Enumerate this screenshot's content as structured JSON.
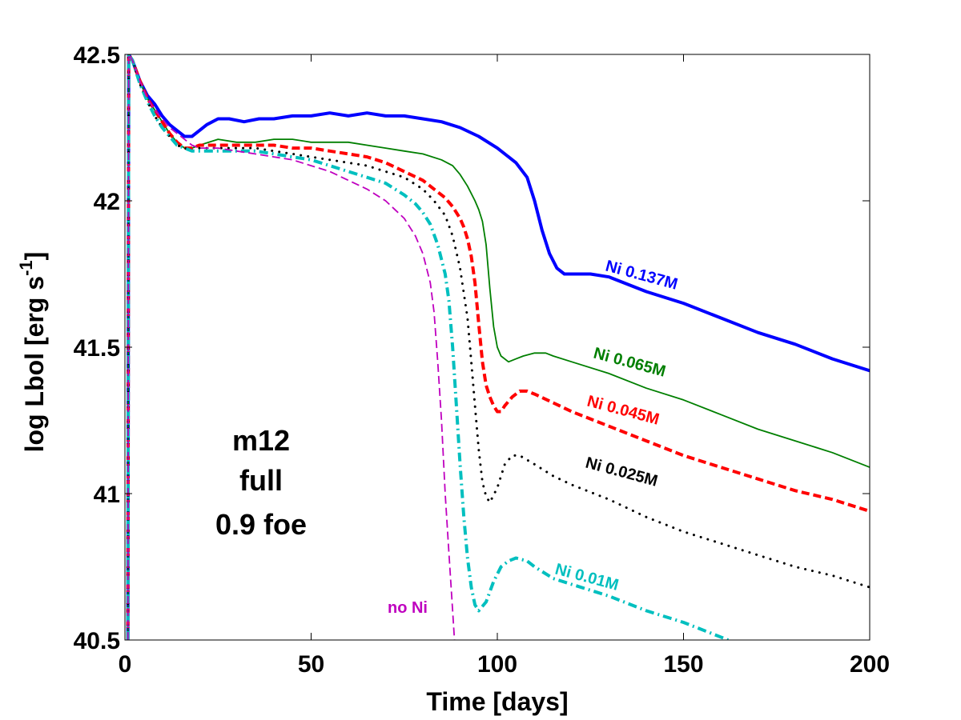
{
  "chart_data": {
    "type": "line",
    "xlabel": "Time [days]",
    "ylabel_main": "log Lbol [erg s",
    "ylabel_sup": "-1",
    "ylabel_close": "]",
    "xlim": [
      0,
      200
    ],
    "ylim": [
      40.5,
      42.5
    ],
    "xticks": [
      0,
      50,
      100,
      150,
      200
    ],
    "yticks": [
      40.5,
      41,
      41.5,
      42,
      42.5
    ],
    "xtick_labels": [
      "0",
      "50",
      "100",
      "150",
      "200"
    ],
    "ytick_labels": [
      "40.5",
      "41",
      "41.5",
      "42",
      "42.5"
    ],
    "annotation": [
      "m12",
      "full",
      "0.9 foe"
    ],
    "series": [
      {
        "name": "Ni 0.137M",
        "label": "Ni 0.137M",
        "color": "#0000ff",
        "style": "solid",
        "width": 4,
        "x": [
          0.8,
          1,
          2,
          4,
          6,
          8,
          10,
          12,
          14,
          16,
          18,
          20,
          22,
          25,
          28,
          32,
          36,
          40,
          45,
          50,
          55,
          60,
          65,
          70,
          75,
          80,
          85,
          90,
          95,
          100,
          105,
          108,
          110,
          112,
          114,
          116,
          118,
          120,
          125,
          130,
          140,
          150,
          160,
          170,
          180,
          190,
          200
        ],
        "y": [
          40.5,
          42.5,
          42.48,
          42.41,
          42.36,
          42.33,
          42.29,
          42.26,
          42.24,
          42.22,
          42.22,
          42.24,
          42.26,
          42.28,
          42.28,
          42.27,
          42.28,
          42.28,
          42.29,
          42.29,
          42.3,
          42.29,
          42.3,
          42.29,
          42.29,
          42.28,
          42.27,
          42.25,
          42.22,
          42.18,
          42.13,
          42.08,
          42.0,
          41.9,
          41.82,
          41.77,
          41.75,
          41.75,
          41.75,
          41.74,
          41.69,
          41.65,
          41.6,
          41.55,
          41.51,
          41.46,
          41.42
        ]
      },
      {
        "name": "Ni 0.065M",
        "label": "Ni 0.065M",
        "color": "#007f00",
        "style": "solid",
        "width": 1.8,
        "x": [
          0.8,
          1,
          2,
          4,
          6,
          8,
          10,
          12,
          14,
          16,
          18,
          20,
          25,
          30,
          35,
          40,
          45,
          50,
          55,
          60,
          65,
          70,
          75,
          80,
          85,
          88,
          90,
          92,
          94,
          95,
          96,
          97,
          98,
          99,
          100,
          101,
          103,
          105,
          107,
          110,
          113,
          115,
          120,
          130,
          140,
          150,
          160,
          170,
          180,
          190,
          200
        ],
        "y": [
          40.5,
          42.5,
          42.48,
          42.41,
          42.35,
          42.31,
          42.27,
          42.23,
          42.2,
          42.18,
          42.18,
          42.19,
          42.21,
          42.2,
          42.2,
          42.21,
          42.21,
          42.2,
          42.2,
          42.2,
          42.19,
          42.18,
          42.17,
          42.16,
          42.14,
          42.12,
          42.09,
          42.05,
          42.0,
          41.97,
          41.93,
          41.85,
          41.7,
          41.57,
          41.5,
          41.47,
          41.45,
          41.46,
          41.47,
          41.48,
          41.48,
          41.47,
          41.45,
          41.41,
          41.36,
          41.32,
          41.27,
          41.22,
          41.18,
          41.14,
          41.09
        ]
      },
      {
        "name": "Ni 0.045M",
        "label": "Ni 0.045M",
        "color": "#ff0000",
        "style": "dashed",
        "width": 4,
        "x": [
          0.8,
          1,
          2,
          4,
          6,
          8,
          10,
          12,
          14,
          16,
          18,
          20,
          25,
          30,
          35,
          40,
          45,
          50,
          55,
          60,
          65,
          70,
          75,
          80,
          83,
          86,
          88,
          90,
          91,
          92,
          93,
          94,
          95,
          96,
          97,
          98,
          99,
          100,
          101,
          102,
          104,
          106,
          108,
          110,
          115,
          120,
          130,
          140,
          150,
          160,
          170,
          180,
          190,
          200
        ],
        "y": [
          40.5,
          42.5,
          42.48,
          42.41,
          42.35,
          42.31,
          42.27,
          42.23,
          42.2,
          42.18,
          42.18,
          42.19,
          42.19,
          42.19,
          42.19,
          42.19,
          42.18,
          42.18,
          42.17,
          42.16,
          42.15,
          42.13,
          42.1,
          42.07,
          42.04,
          42.01,
          41.98,
          41.94,
          41.91,
          41.87,
          41.81,
          41.72,
          41.58,
          41.45,
          41.37,
          41.33,
          41.3,
          41.28,
          41.28,
          41.3,
          41.33,
          41.35,
          41.35,
          41.34,
          41.31,
          41.28,
          41.23,
          41.18,
          41.13,
          41.09,
          41.05,
          41.01,
          40.98,
          40.94
        ]
      },
      {
        "name": "Ni 0.025M",
        "label": "Ni 0.025M",
        "color": "#000000",
        "style": "dotted",
        "width": 3,
        "x": [
          0.8,
          1,
          2,
          4,
          6,
          8,
          10,
          12,
          14,
          16,
          18,
          20,
          25,
          30,
          35,
          40,
          45,
          50,
          55,
          60,
          65,
          70,
          75,
          80,
          83,
          86,
          88,
          90,
          92,
          93,
          94,
          95,
          96,
          97,
          98,
          100,
          102,
          104,
          106,
          110,
          115,
          120,
          130,
          140,
          150,
          160,
          170,
          180,
          190,
          200
        ],
        "y": [
          40.5,
          42.5,
          42.48,
          42.4,
          42.34,
          42.29,
          42.25,
          42.22,
          42.19,
          42.18,
          42.17,
          42.18,
          42.18,
          42.18,
          42.18,
          42.17,
          42.16,
          42.15,
          42.14,
          42.13,
          42.12,
          42.1,
          42.08,
          42.04,
          42.0,
          41.95,
          41.88,
          41.77,
          41.6,
          41.45,
          41.3,
          41.15,
          41.04,
          40.99,
          40.97,
          41.02,
          41.1,
          41.13,
          41.13,
          41.1,
          41.06,
          41.03,
          40.98,
          40.92,
          40.87,
          40.83,
          40.79,
          40.75,
          40.72,
          40.68
        ]
      },
      {
        "name": "Ni 0.01M",
        "label": "Ni 0.01M",
        "color": "#00bfbf",
        "style": "dashdot",
        "width": 4,
        "x": [
          0.8,
          1,
          2,
          4,
          6,
          8,
          10,
          12,
          14,
          16,
          18,
          20,
          25,
          30,
          35,
          40,
          45,
          50,
          55,
          60,
          65,
          70,
          75,
          78,
          80,
          82,
          84,
          86,
          87,
          88,
          89,
          90,
          91,
          92,
          93,
          94,
          95,
          97,
          99,
          101,
          103,
          105,
          108,
          110,
          115,
          120,
          130,
          140,
          150,
          160,
          162
        ],
        "y": [
          40.5,
          42.5,
          42.48,
          42.4,
          42.34,
          42.29,
          42.25,
          42.22,
          42.19,
          42.18,
          42.17,
          42.17,
          42.17,
          42.17,
          42.17,
          42.16,
          42.15,
          42.14,
          42.12,
          42.1,
          42.08,
          42.06,
          42.02,
          41.99,
          41.96,
          41.92,
          41.85,
          41.75,
          41.66,
          41.5,
          41.3,
          41.1,
          40.92,
          40.78,
          40.68,
          40.62,
          40.6,
          40.63,
          40.7,
          40.75,
          40.77,
          40.78,
          40.77,
          40.75,
          40.71,
          40.69,
          40.65,
          40.6,
          40.56,
          40.51,
          40.5
        ]
      },
      {
        "name": "no Ni",
        "label": "no Ni",
        "color": "#bf00bf",
        "style": "dashed",
        "width": 1.8,
        "x": [
          0.8,
          1,
          2,
          4,
          6,
          8,
          10,
          12,
          14,
          16,
          18,
          20,
          25,
          30,
          35,
          40,
          45,
          50,
          55,
          60,
          65,
          70,
          75,
          78,
          80,
          82,
          83,
          84,
          85,
          86,
          87,
          88,
          88.5
        ],
        "y": [
          40.5,
          42.5,
          42.48,
          42.41,
          42.35,
          42.31,
          42.28,
          42.25,
          42.23,
          42.21,
          42.19,
          42.18,
          42.18,
          42.17,
          42.16,
          42.15,
          42.14,
          42.12,
          42.1,
          42.07,
          42.04,
          42.0,
          41.94,
          41.88,
          41.82,
          41.72,
          41.62,
          41.45,
          41.25,
          41.0,
          40.8,
          40.6,
          40.5
        ]
      }
    ]
  }
}
